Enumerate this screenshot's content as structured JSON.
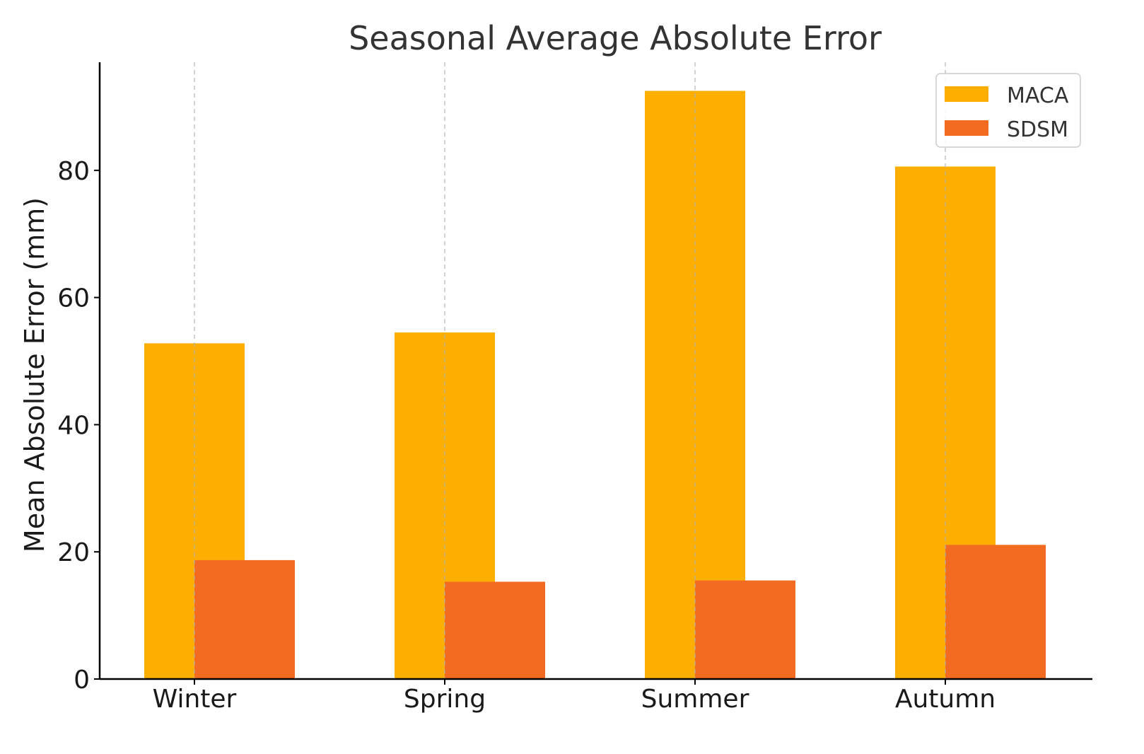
{
  "chart_data": {
    "type": "bar",
    "title": "Seasonal Average Absolute Error",
    "xlabel": "",
    "ylabel": "Mean Absolute Error (mm)",
    "categories": [
      "Winter",
      "Spring",
      "Summer",
      "Autumn"
    ],
    "series": [
      {
        "name": "MACA",
        "values": [
          52.8,
          54.5,
          92.5,
          80.6
        ],
        "color": "#FCAF01"
      },
      {
        "name": "SDSM",
        "values": [
          18.7,
          15.3,
          15.5,
          21.1
        ],
        "color": "#F26B21"
      }
    ],
    "ylim": [
      0,
      97
    ],
    "yticks": [
      0,
      20,
      40,
      60,
      80
    ],
    "grid": "vertical-dashed",
    "legend_position": "top-right"
  }
}
